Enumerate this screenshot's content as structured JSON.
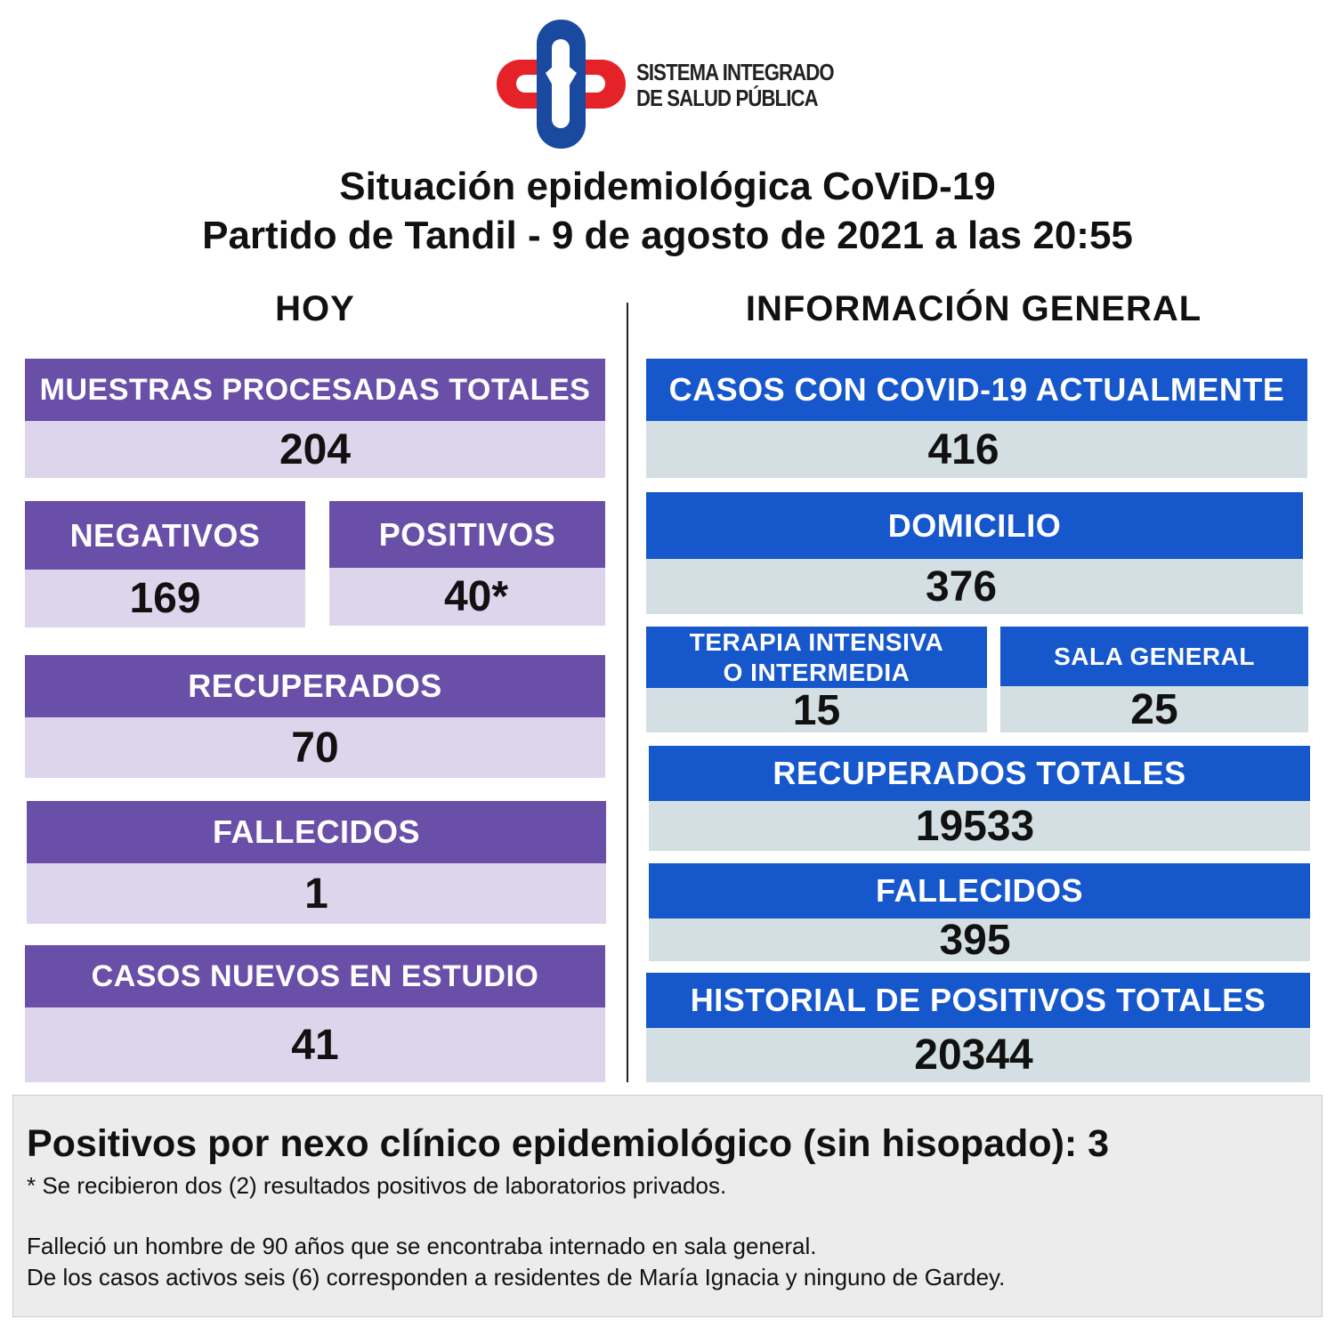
{
  "logo": {
    "line1": "SISTEMA INTEGRADO",
    "line2": "DE SALUD PÚBLICA"
  },
  "title": {
    "line1": "Situación epidemiológica CoViD-19",
    "line2": "Partido de Tandil - 9 de agosto de 2021 a las 20:55"
  },
  "hoy": {
    "heading": "HOY",
    "muestras": {
      "label": "MUESTRAS PROCESADAS TOTALES",
      "value": "204"
    },
    "negativos": {
      "label": "NEGATIVOS",
      "value": "169"
    },
    "positivos": {
      "label": "POSITIVOS",
      "value": "40*"
    },
    "recuperados": {
      "label": "RECUPERADOS",
      "value": "70"
    },
    "fallecidos": {
      "label": "FALLECIDOS",
      "value": "1"
    },
    "estudio": {
      "label": "CASOS NUEVOS EN ESTUDIO",
      "value": "41"
    }
  },
  "general": {
    "heading": "INFORMACIÓN GENERAL",
    "actuales": {
      "label": "CASOS CON COVID-19 ACTUALMENTE",
      "value": "416"
    },
    "domicilio": {
      "label": "DOMICILIO",
      "value": "376"
    },
    "terapia": {
      "label1": "TERAPIA INTENSIVA",
      "label2": "O INTERMEDIA",
      "value": "15"
    },
    "sala": {
      "label": "SALA GENERAL",
      "value": "25"
    },
    "recuperados": {
      "label": "RECUPERADOS TOTALES",
      "value": "19533"
    },
    "fallecidos": {
      "label": "FALLECIDOS",
      "value": "395"
    },
    "historial": {
      "label": "HISTORIAL DE POSITIVOS TOTALES",
      "value": "20344"
    }
  },
  "footer": {
    "headline": "Positivos por nexo clínico epidemiológico (sin hisopado): 3",
    "note": "* Se recibieron dos (2) resultados positivos de laboratorios privados.",
    "line1": "Falleció un hombre de 90 años que se encontraba internado en sala general.",
    "line2": "De los casos activos seis (6) corresponden a residentes de María Ignacia y ninguno de Gardey."
  }
}
